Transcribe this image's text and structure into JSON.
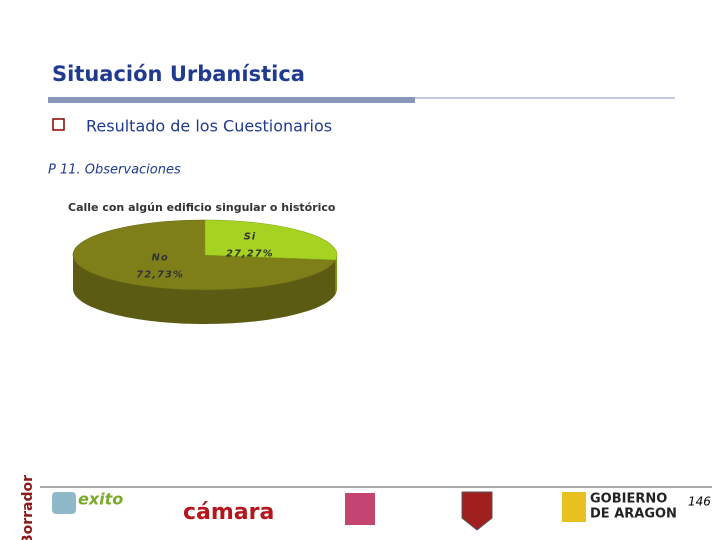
{
  "header": {
    "title": "Situación Urbanística",
    "bullet": "Resultado de los Cuestionarios",
    "subtitle": "P 11. Observaciones"
  },
  "chart_data": {
    "type": "pie",
    "title": "Calle con algún edificio singular o histórico",
    "categories": [
      "No",
      "Si"
    ],
    "values": [
      72.73,
      27.27
    ],
    "value_labels": [
      "72,73%",
      "27,27%"
    ],
    "colors": [
      "#7f7f1a",
      "#a6d321"
    ]
  },
  "footer": {
    "page": "146",
    "stamp": "Borrador",
    "logos": [
      "exito",
      "cámara",
      "GOBIERNO",
      "DE ARAGON"
    ]
  }
}
